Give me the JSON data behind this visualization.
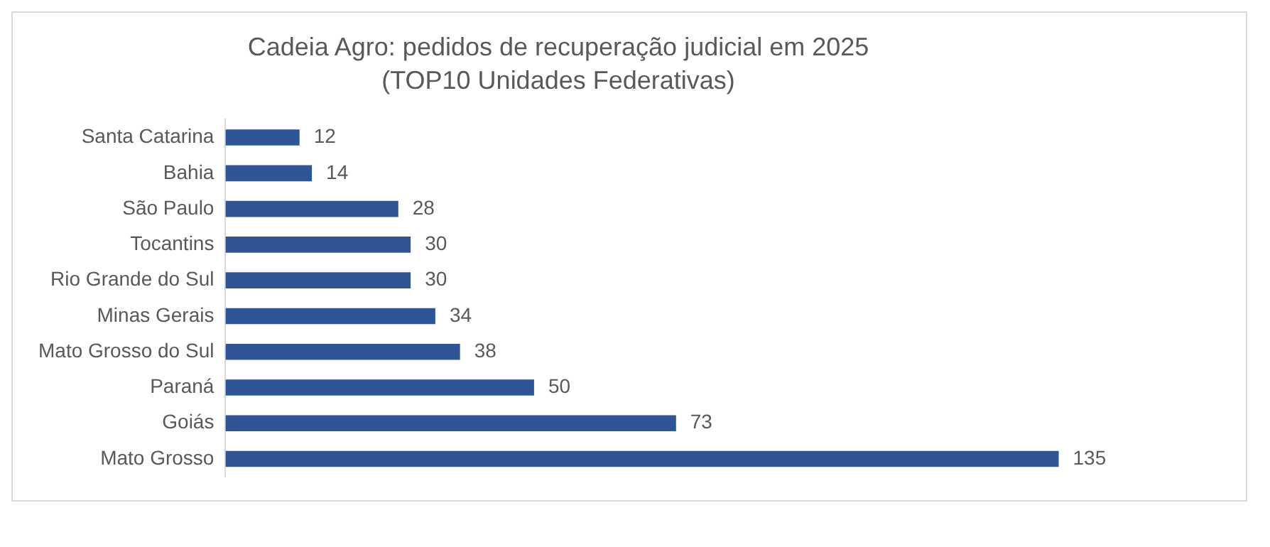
{
  "chart_data": {
    "type": "bar",
    "orientation": "horizontal",
    "title": "Cadeia Agro: pedidos de recuperação judicial em 2025",
    "subtitle": "(TOP10 Unidades Federativas)",
    "categories": [
      "Santa Catarina",
      "Bahia",
      "São Paulo",
      "Tocantins",
      "Rio Grande do Sul",
      "Minas Gerais",
      "Mato Grosso do Sul",
      "Paraná",
      "Goiás",
      "Mato Grosso"
    ],
    "values": [
      12,
      14,
      28,
      30,
      30,
      34,
      38,
      50,
      73,
      135
    ],
    "color": "#2f5597",
    "data_labels": true,
    "legend": false
  }
}
